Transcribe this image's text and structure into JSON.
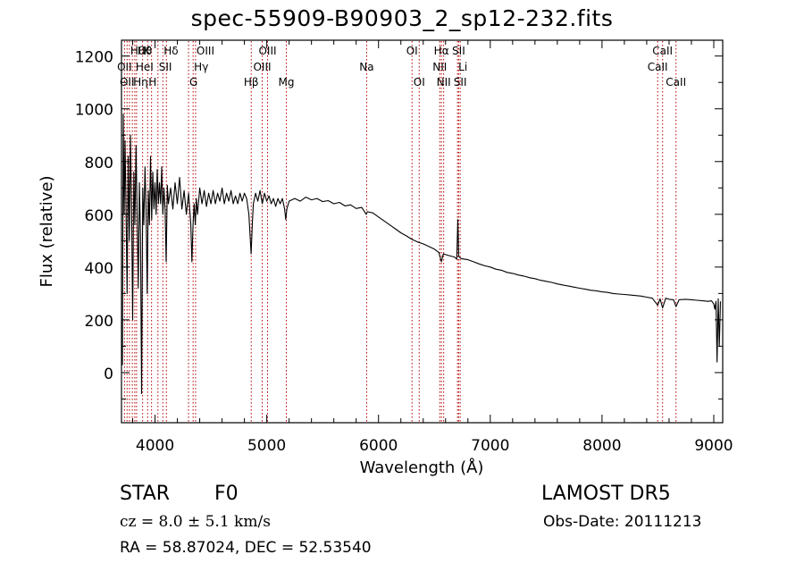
{
  "chart_data": {
    "type": "line",
    "title": "spec-55909-B90903_2_sp12-232.fits",
    "xlabel": "Wavelength (Å)",
    "ylabel": "Flux (relative)",
    "xlim": [
      3700,
      9080
    ],
    "ylim": [
      -190,
      1260
    ],
    "xticks": [
      4000,
      5000,
      6000,
      7000,
      8000,
      9000
    ],
    "yticks": [
      0,
      200,
      400,
      600,
      800,
      1000,
      1200
    ],
    "grid": false,
    "series": [
      {
        "color": "#000000",
        "points": [
          [
            3700,
            120
          ],
          [
            3708,
            30
          ],
          [
            3716,
            980
          ],
          [
            3724,
            600
          ],
          [
            3732,
            880
          ],
          [
            3740,
            640
          ],
          [
            3750,
            300
          ],
          [
            3760,
            820
          ],
          [
            3770,
            500
          ],
          [
            3780,
            900
          ],
          [
            3790,
            620
          ],
          [
            3800,
            200
          ],
          [
            3810,
            760
          ],
          [
            3820,
            560
          ],
          [
            3830,
            860
          ],
          [
            3840,
            600
          ],
          [
            3850,
            320
          ],
          [
            3860,
            720
          ],
          [
            3870,
            520
          ],
          [
            3880,
            -80
          ],
          [
            3890,
            700
          ],
          [
            3900,
            560
          ],
          [
            3910,
            780
          ],
          [
            3920,
            620
          ],
          [
            3930,
            300
          ],
          [
            3940,
            690
          ],
          [
            3950,
            560
          ],
          [
            3960,
            820
          ],
          [
            3970,
            580
          ],
          [
            3980,
            760
          ],
          [
            3990,
            620
          ],
          [
            4000,
            720
          ],
          [
            4010,
            600
          ],
          [
            4020,
            770
          ],
          [
            4030,
            640
          ],
          [
            4040,
            720
          ],
          [
            4050,
            640
          ],
          [
            4060,
            780
          ],
          [
            4070,
            600
          ],
          [
            4080,
            700
          ],
          [
            4090,
            620
          ],
          [
            4100,
            420
          ],
          [
            4110,
            710
          ],
          [
            4120,
            640
          ],
          [
            4140,
            700
          ],
          [
            4160,
            620
          ],
          [
            4180,
            720
          ],
          [
            4200,
            640
          ],
          [
            4220,
            740
          ],
          [
            4240,
            620
          ],
          [
            4260,
            690
          ],
          [
            4280,
            600
          ],
          [
            4300,
            680
          ],
          [
            4320,
            560
          ],
          [
            4330,
            420
          ],
          [
            4340,
            560
          ],
          [
            4350,
            640
          ],
          [
            4360,
            560
          ],
          [
            4370,
            660
          ],
          [
            4380,
            600
          ],
          [
            4400,
            700
          ],
          [
            4420,
            640
          ],
          [
            4440,
            690
          ],
          [
            4460,
            630
          ],
          [
            4480,
            680
          ],
          [
            4500,
            640
          ],
          [
            4520,
            690
          ],
          [
            4540,
            640
          ],
          [
            4560,
            680
          ],
          [
            4580,
            650
          ],
          [
            4600,
            700
          ],
          [
            4620,
            640
          ],
          [
            4640,
            680
          ],
          [
            4660,
            650
          ],
          [
            4680,
            690
          ],
          [
            4700,
            640
          ],
          [
            4720,
            670
          ],
          [
            4740,
            640
          ],
          [
            4760,
            680
          ],
          [
            4780,
            650
          ],
          [
            4800,
            680
          ],
          [
            4820,
            660
          ],
          [
            4840,
            600
          ],
          [
            4860,
            450
          ],
          [
            4870,
            560
          ],
          [
            4880,
            640
          ],
          [
            4900,
            680
          ],
          [
            4920,
            650
          ],
          [
            4940,
            690
          ],
          [
            4960,
            640
          ],
          [
            4980,
            680
          ],
          [
            5000,
            650
          ],
          [
            5020,
            670
          ],
          [
            5040,
            640
          ],
          [
            5060,
            660
          ],
          [
            5080,
            630
          ],
          [
            5100,
            660
          ],
          [
            5120,
            640
          ],
          [
            5140,
            660
          ],
          [
            5160,
            620
          ],
          [
            5170,
            580
          ],
          [
            5180,
            620
          ],
          [
            5200,
            650
          ],
          [
            5250,
            660
          ],
          [
            5300,
            650
          ],
          [
            5350,
            665
          ],
          [
            5400,
            655
          ],
          [
            5450,
            660
          ],
          [
            5500,
            648
          ],
          [
            5550,
            652
          ],
          [
            5600,
            640
          ],
          [
            5650,
            645
          ],
          [
            5700,
            632
          ],
          [
            5750,
            636
          ],
          [
            5800,
            622
          ],
          [
            5850,
            626
          ],
          [
            5890,
            600
          ],
          [
            5900,
            610
          ],
          [
            5950,
            605
          ],
          [
            6000,
            590
          ],
          [
            6050,
            575
          ],
          [
            6100,
            560
          ],
          [
            6150,
            545
          ],
          [
            6200,
            530
          ],
          [
            6250,
            518
          ],
          [
            6300,
            505
          ],
          [
            6350,
            495
          ],
          [
            6400,
            488
          ],
          [
            6450,
            478
          ],
          [
            6500,
            468
          ],
          [
            6540,
            455
          ],
          [
            6563,
            420
          ],
          [
            6580,
            450
          ],
          [
            6620,
            445
          ],
          [
            6660,
            440
          ],
          [
            6680,
            438
          ],
          [
            6700,
            430
          ],
          [
            6710,
            580
          ],
          [
            6718,
            440
          ],
          [
            6740,
            432
          ],
          [
            6800,
            428
          ],
          [
            6850,
            420
          ],
          [
            6900,
            412
          ],
          [
            6950,
            405
          ],
          [
            7000,
            400
          ],
          [
            7050,
            392
          ],
          [
            7100,
            388
          ],
          [
            7150,
            380
          ],
          [
            7200,
            376
          ],
          [
            7250,
            370
          ],
          [
            7300,
            366
          ],
          [
            7350,
            360
          ],
          [
            7400,
            356
          ],
          [
            7450,
            350
          ],
          [
            7500,
            346
          ],
          [
            7550,
            342
          ],
          [
            7600,
            336
          ],
          [
            7650,
            332
          ],
          [
            7700,
            328
          ],
          [
            7750,
            324
          ],
          [
            7800,
            320
          ],
          [
            7850,
            316
          ],
          [
            7900,
            312
          ],
          [
            7950,
            310
          ],
          [
            8000,
            306
          ],
          [
            8050,
            304
          ],
          [
            8100,
            300
          ],
          [
            8150,
            298
          ],
          [
            8200,
            296
          ],
          [
            8250,
            294
          ],
          [
            8300,
            292
          ],
          [
            8350,
            290
          ],
          [
            8400,
            286
          ],
          [
            8450,
            282
          ],
          [
            8498,
            255
          ],
          [
            8520,
            280
          ],
          [
            8542,
            245
          ],
          [
            8570,
            282
          ],
          [
            8600,
            278
          ],
          [
            8640,
            276
          ],
          [
            8662,
            250
          ],
          [
            8690,
            276
          ],
          [
            8750,
            278
          ],
          [
            8800,
            276
          ],
          [
            8850,
            274
          ],
          [
            8900,
            272
          ],
          [
            8950,
            270
          ],
          [
            8980,
            272
          ],
          [
            9000,
            260
          ],
          [
            9010,
            240
          ],
          [
            9020,
            270
          ],
          [
            9030,
            40
          ],
          [
            9040,
            280
          ],
          [
            9050,
            100
          ],
          [
            9060,
            270
          ]
        ]
      }
    ],
    "lines": [
      {
        "wavelength": 3727,
        "row": 2,
        "label": "OII",
        "anchor": "middle"
      },
      {
        "wavelength": 3750,
        "row": 3,
        "label": "OII",
        "anchor": "middle"
      },
      {
        "wavelength": 3771,
        "row": 1,
        "label": "Hθ",
        "anchor": "start"
      },
      {
        "wavelength": 3797,
        "row": 3,
        "label": "Hη",
        "anchor": "start"
      },
      {
        "wavelength": 3819,
        "row": 2,
        "label": "HeI",
        "anchor": "start"
      },
      {
        "wavelength": 3835,
        "row": 1,
        "label": "Hθ",
        "anchor": "start"
      },
      {
        "wavelength": 3889,
        "row": 1,
        "label": "K",
        "anchor": "start"
      },
      {
        "wavelength": 3934,
        "row": 3,
        "label": "H",
        "anchor": "start"
      },
      {
        "wavelength": 3969,
        "row": 3,
        "label": "",
        "anchor": "start"
      },
      {
        "wavelength": 4026,
        "row": 2,
        "label": "SII",
        "anchor": "start"
      },
      {
        "wavelength": 4070,
        "row": 1,
        "label": "Hδ",
        "anchor": "start"
      },
      {
        "wavelength": 4102,
        "row": 1,
        "label": "",
        "anchor": "start"
      },
      {
        "wavelength": 4300,
        "row": 3,
        "label": "G",
        "anchor": "start"
      },
      {
        "wavelength": 4341,
        "row": 2,
        "label": "Hγ",
        "anchor": "start"
      },
      {
        "wavelength": 4363,
        "row": 1,
        "label": "OIII",
        "anchor": "start"
      },
      {
        "wavelength": 4861,
        "row": 3,
        "label": "Hβ",
        "anchor": "middle"
      },
      {
        "wavelength": 4959,
        "row": 2,
        "label": "OIII",
        "anchor": "middle"
      },
      {
        "wavelength": 5007,
        "row": 1,
        "label": "OIII",
        "anchor": "middle"
      },
      {
        "wavelength": 5175,
        "row": 3,
        "label": "Mg",
        "anchor": "middle"
      },
      {
        "wavelength": 5894,
        "row": 2,
        "label": "Na",
        "anchor": "middle"
      },
      {
        "wavelength": 6300,
        "row": 1,
        "label": "OI",
        "anchor": "middle"
      },
      {
        "wavelength": 6364,
        "row": 3,
        "label": "OI",
        "anchor": "middle"
      },
      {
        "wavelength": 6548,
        "row": 2,
        "label": "NII",
        "anchor": "middle"
      },
      {
        "wavelength": 6563,
        "row": 1,
        "label": "Hα",
        "anchor": "middle"
      },
      {
        "wavelength": 6583,
        "row": 3,
        "label": "NII",
        "anchor": "middle"
      },
      {
        "wavelength": 6707,
        "row": 2,
        "label": "Li",
        "anchor": "start"
      },
      {
        "wavelength": 6717,
        "row": 1,
        "label": "SII",
        "anchor": "middle"
      },
      {
        "wavelength": 6731,
        "row": 3,
        "label": "SII",
        "anchor": "middle"
      },
      {
        "wavelength": 8498,
        "row": 2,
        "label": "CaII",
        "anchor": "middle"
      },
      {
        "wavelength": 8542,
        "row": 1,
        "label": "CaII",
        "anchor": "middle"
      },
      {
        "wavelength": 8662,
        "row": 3,
        "label": "CaII",
        "anchor": "middle"
      }
    ],
    "line_color": "#b40000"
  },
  "info": {
    "class": "STAR",
    "subclass": "F0",
    "survey": "LAMOST DR5",
    "cz": "cz = 8.0 ± 5.1 km/s",
    "obs_date": "Obs-Date: 20111213",
    "radec": "RA =  58.87024, DEC =  52.53540"
  }
}
